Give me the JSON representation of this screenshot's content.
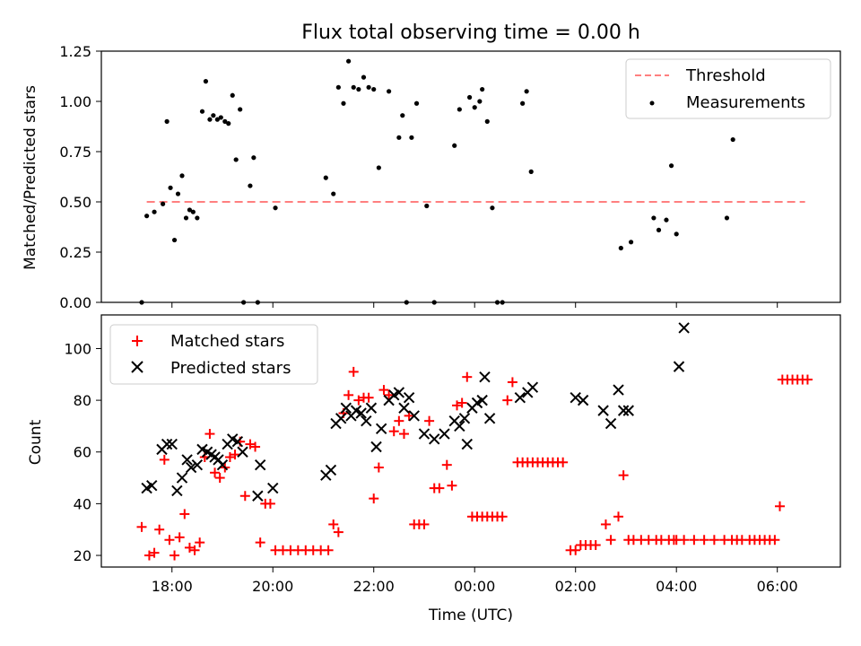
{
  "chart_data": [
    {
      "type": "scatter",
      "title": "Flux total observing time = 0.00 h",
      "xlabel": "",
      "ylabel": "Matched/Predicted stars",
      "xlim_hours": [
        16.6,
        31.25
      ],
      "ylim": [
        0,
        1.25
      ],
      "yticks": [
        0,
        0.25,
        0.5,
        0.75,
        1.0,
        1.25
      ],
      "ytick_labels": [
        "0.00",
        "0.25",
        "0.50",
        "0.75",
        "1.00",
        "1.25"
      ],
      "grid": false,
      "legend_position": "top-right",
      "threshold": {
        "name": "Threshold",
        "value": 0.5,
        "x_start": 17.5,
        "x_end": 30.55,
        "color": "#ff7f7f"
      },
      "series": [
        {
          "name": "Measurements",
          "marker": "dot",
          "color": "#000000",
          "x": [
            17.4,
            17.5,
            17.65,
            17.82,
            17.9,
            17.97,
            18.05,
            18.12,
            18.2,
            18.28,
            18.35,
            18.42,
            18.5,
            18.6,
            18.67,
            18.75,
            18.82,
            18.9,
            18.97,
            19.05,
            19.12,
            19.2,
            19.27,
            19.35,
            19.42,
            19.55,
            19.62,
            19.7,
            20.05,
            21.05,
            21.2,
            21.3,
            21.4,
            21.5,
            21.6,
            21.7,
            21.8,
            21.9,
            22.0,
            22.1,
            22.3,
            22.5,
            22.57,
            22.65,
            22.75,
            22.85,
            23.05,
            23.2,
            23.6,
            23.7,
            23.9,
            24.0,
            24.1,
            24.15,
            24.25,
            24.35,
            24.45,
            24.55,
            24.95,
            25.03,
            25.12,
            26.9,
            27.1,
            27.55,
            27.65,
            27.8,
            27.9,
            28.0,
            29.0,
            29.12
          ],
          "values": [
            0.0,
            0.43,
            0.45,
            0.49,
            0.9,
            0.57,
            0.31,
            0.54,
            0.63,
            0.42,
            0.46,
            0.45,
            0.42,
            0.95,
            1.1,
            0.91,
            0.93,
            0.91,
            0.92,
            0.9,
            0.89,
            1.03,
            0.71,
            0.96,
            0.0,
            0.58,
            0.72,
            0.0,
            0.47,
            0.62,
            0.54,
            1.07,
            0.99,
            1.2,
            1.07,
            1.06,
            1.12,
            1.07,
            1.06,
            0.67,
            1.05,
            0.82,
            0.93,
            0.0,
            0.82,
            0.99,
            0.48,
            0.0,
            0.78,
            0.96,
            1.02,
            0.97,
            1.0,
            1.06,
            0.9,
            0.47,
            0.0,
            0.0,
            0.99,
            1.05,
            0.65,
            0.27,
            0.3,
            0.42,
            0.36,
            0.41,
            0.68,
            0.34,
            0.42,
            0.81
          ]
        }
      ]
    },
    {
      "type": "scatter",
      "title": "",
      "xlabel": "Time (UTC)",
      "ylabel": "Count",
      "xlim_hours": [
        16.6,
        31.25
      ],
      "ylim": [
        15.5,
        113
      ],
      "yticks": [
        20,
        40,
        60,
        80,
        100
      ],
      "ytick_labels": [
        "20",
        "40",
        "60",
        "80",
        "100"
      ],
      "xticks_hours": [
        18,
        20,
        22,
        24,
        26,
        28,
        30
      ],
      "xtick_labels": [
        "18:00",
        "20:00",
        "22:00",
        "00:00",
        "02:00",
        "04:00",
        "06:00"
      ],
      "grid": false,
      "legend_position": "top-left",
      "series": [
        {
          "name": "Matched stars",
          "marker": "plus",
          "color": "#ff0000",
          "x": [
            17.4,
            17.55,
            17.65,
            17.75,
            17.85,
            17.95,
            18.05,
            18.15,
            18.25,
            18.35,
            18.45,
            18.55,
            18.65,
            18.75,
            18.85,
            18.95,
            19.05,
            19.15,
            19.25,
            19.35,
            19.45,
            19.55,
            19.65,
            19.75,
            19.85,
            19.95,
            20.05,
            20.2,
            20.35,
            20.5,
            20.65,
            20.8,
            20.95,
            21.1,
            21.2,
            21.3,
            21.4,
            21.5,
            21.6,
            21.7,
            21.8,
            21.9,
            22.0,
            22.1,
            22.2,
            22.3,
            22.4,
            22.5,
            22.6,
            22.7,
            22.8,
            22.9,
            23.0,
            23.1,
            23.2,
            23.3,
            23.45,
            23.55,
            23.65,
            23.75,
            23.85,
            23.95,
            24.05,
            24.15,
            24.25,
            24.35,
            24.45,
            24.55,
            24.65,
            24.75,
            24.85,
            24.95,
            25.05,
            25.15,
            25.25,
            25.35,
            25.45,
            25.55,
            25.65,
            25.75,
            25.9,
            26.0,
            26.1,
            26.2,
            26.3,
            26.4,
            26.6,
            26.7,
            26.85,
            26.95,
            27.05,
            27.15,
            27.3,
            27.45,
            27.6,
            27.7,
            27.85,
            27.95,
            28.0,
            28.15,
            28.35,
            28.55,
            28.75,
            28.95,
            29.1,
            29.2,
            29.3,
            29.45,
            29.55,
            29.65,
            29.75,
            29.85,
            29.95,
            30.05,
            30.1,
            30.2,
            30.3,
            30.4,
            30.5,
            30.6
          ],
          "values": [
            31,
            20,
            21,
            30,
            57,
            26,
            20,
            27,
            36,
            23,
            22,
            25,
            58,
            67,
            52,
            50,
            54,
            58,
            59,
            64,
            43,
            63,
            62,
            25,
            40,
            40,
            22,
            22,
            22,
            22,
            22,
            22,
            22,
            22,
            32,
            29,
            75,
            82,
            91,
            80,
            81,
            81,
            42,
            54,
            84,
            82,
            68,
            72,
            67,
            74,
            32,
            32,
            32,
            72,
            46,
            46,
            55,
            47,
            78,
            79,
            89,
            35,
            35,
            35,
            35,
            35,
            35,
            35,
            80,
            87,
            56,
            56,
            56,
            56,
            56,
            56,
            56,
            56,
            56,
            56,
            22,
            22,
            24,
            24,
            24,
            24,
            32,
            26,
            35,
            51,
            26,
            26,
            26,
            26,
            26,
            26,
            26,
            26,
            26,
            26,
            26,
            26,
            26,
            26,
            26,
            26,
            26,
            26,
            26,
            26,
            26,
            26,
            26,
            39,
            88,
            88,
            88,
            88,
            88,
            88
          ]
        },
        {
          "name": "Predicted stars",
          "marker": "x",
          "color": "#000000",
          "x": [
            17.5,
            17.6,
            17.8,
            17.9,
            18.0,
            18.1,
            18.2,
            18.3,
            18.38,
            18.5,
            18.6,
            18.7,
            18.78,
            18.85,
            18.92,
            19.0,
            19.1,
            19.2,
            19.3,
            19.4,
            19.7,
            19.75,
            20.0,
            21.05,
            21.15,
            21.25,
            21.35,
            21.45,
            21.55,
            21.65,
            21.75,
            21.85,
            21.95,
            22.05,
            22.15,
            22.3,
            22.4,
            22.5,
            22.6,
            22.7,
            22.8,
            23.0,
            23.2,
            23.4,
            23.6,
            23.7,
            23.8,
            23.85,
            23.95,
            24.05,
            24.15,
            24.2,
            24.3,
            24.9,
            25.05,
            25.15,
            26.0,
            26.15,
            26.55,
            26.7,
            26.85,
            26.95,
            27.05,
            28.05,
            28.15
          ],
          "values": [
            46,
            47,
            61,
            63,
            63,
            45,
            50,
            57,
            54,
            55,
            61,
            60,
            59,
            58,
            57,
            55,
            63,
            65,
            64,
            60,
            43,
            55,
            46,
            51,
            53,
            71,
            73,
            77,
            74,
            76,
            75,
            72,
            77,
            62,
            69,
            80,
            82,
            83,
            77,
            81,
            74,
            67,
            65,
            67,
            72,
            70,
            73,
            63,
            77,
            79,
            80,
            89,
            73,
            81,
            83,
            85,
            81,
            80,
            76,
            71,
            84,
            76,
            76,
            93,
            108
          ]
        }
      ]
    }
  ]
}
